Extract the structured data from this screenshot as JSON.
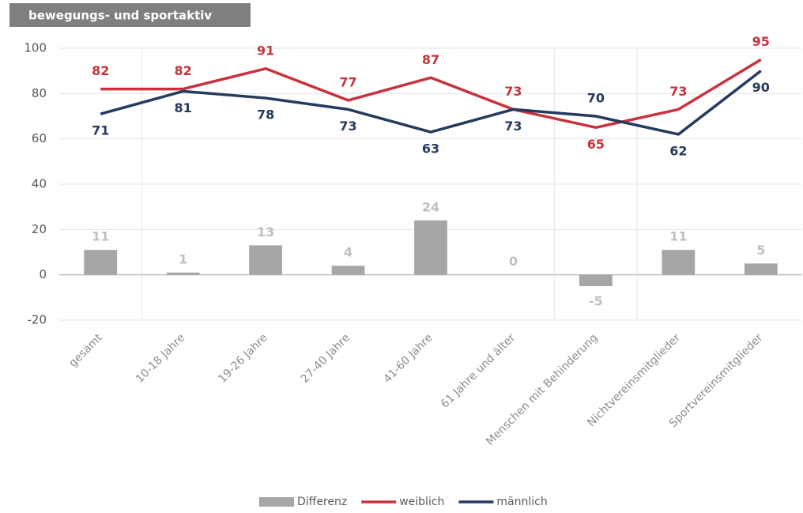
{
  "chart_data": {
    "type": "combo",
    "title": "bewegungs- und sportaktiv",
    "categories": [
      "gesamt",
      "10-18 Jahre",
      "19-26 Jahre",
      "27-40 Jahre",
      "41-60 Jahre",
      "61 Jahre und älter",
      "Menschen mit Behinderung",
      "Nichtvereinsmitglieder",
      "Sportvereinsmitglieder"
    ],
    "series": [
      {
        "name": "Differenz",
        "type": "bar",
        "color": "#a6a6a6",
        "label_color": "#bfbfbf",
        "values": [
          11,
          1,
          13,
          4,
          24,
          0,
          -5,
          11,
          5
        ]
      },
      {
        "name": "weiblich",
        "type": "line",
        "color": "#c8323c",
        "label_color": "#c8323c",
        "values": [
          82,
          82,
          91,
          77,
          87,
          73,
          65,
          73,
          95
        ]
      },
      {
        "name": "männlich",
        "type": "line",
        "color": "#243a5e",
        "label_color": "#243a5e",
        "values": [
          71,
          81,
          78,
          73,
          63,
          73,
          70,
          62,
          90
        ]
      }
    ],
    "ylim": [
      -20,
      100
    ],
    "yticks": [
      -20,
      0,
      20,
      40,
      60,
      80,
      100
    ],
    "grid": true,
    "legend": "bottom"
  }
}
